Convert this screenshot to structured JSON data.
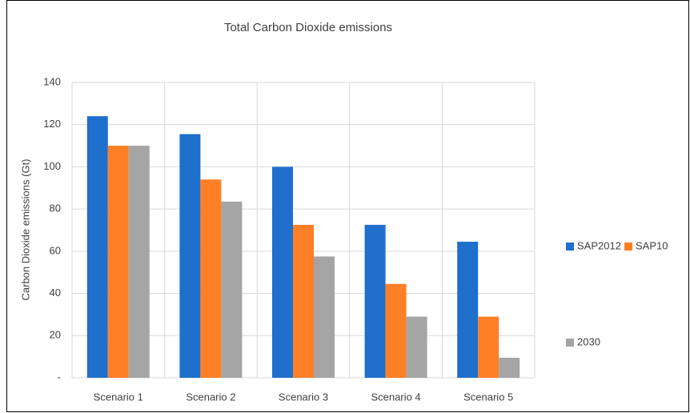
{
  "chart_data": {
    "type": "bar",
    "title": "Total Carbon Dioxide emissions",
    "y_label": "Carbon Dioxide emissions (Gt)",
    "categories": [
      "Scenario 1",
      "Scenario 2",
      "Scenario 3",
      "Scenario 4",
      "Scenario 5"
    ],
    "series": [
      {
        "name": "SAP2012",
        "color": "#1f6fcc",
        "values": [
          124,
          115.5,
          100,
          72.5,
          64.5
        ]
      },
      {
        "name": "SAP10",
        "color": "#ff7f27",
        "values": [
          110,
          94,
          72.5,
          44.5,
          29
        ]
      },
      {
        "name": "2030",
        "color": "#a5a5a5",
        "values": [
          110,
          83.5,
          57.5,
          29,
          9.5
        ]
      }
    ],
    "ylim": [
      0,
      140
    ],
    "yticks": [
      {
        "value": 0,
        "label": "-"
      },
      20,
      40,
      60,
      80,
      100,
      120,
      140
    ],
    "grid": true,
    "legend": "right"
  }
}
